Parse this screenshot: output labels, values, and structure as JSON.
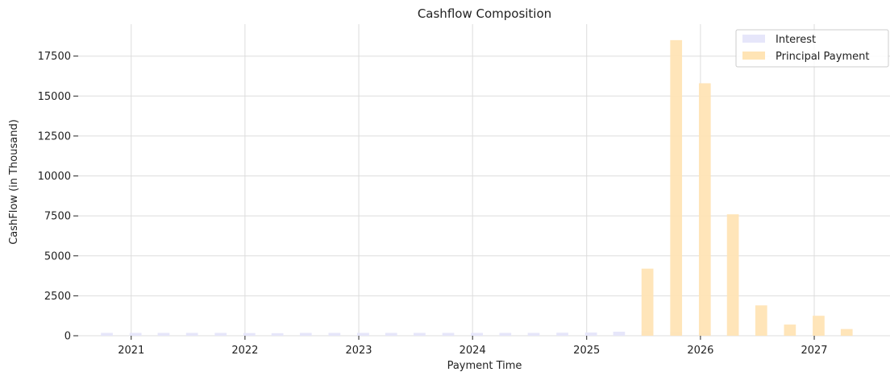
{
  "chart_data": {
    "type": "bar",
    "title": "Cashflow Composition",
    "xlabel": "Payment Time",
    "ylabel": "CashFlow (in Thousand)",
    "xlim": [
      "2020-07-15",
      "2027-09-01"
    ],
    "ylim": [
      0,
      19500
    ],
    "x_ticks": [
      {
        "date": "2021-01-01",
        "label": "2021"
      },
      {
        "date": "2022-01-01",
        "label": "2022"
      },
      {
        "date": "2023-01-01",
        "label": "2023"
      },
      {
        "date": "2024-01-01",
        "label": "2024"
      },
      {
        "date": "2025-01-01",
        "label": "2025"
      },
      {
        "date": "2026-01-01",
        "label": "2026"
      },
      {
        "date": "2027-01-01",
        "label": "2027"
      }
    ],
    "y_ticks": [
      0,
      2500,
      5000,
      7500,
      10000,
      12500,
      15000,
      17500
    ],
    "grid": true,
    "legend_position": "top-right",
    "series": [
      {
        "name": "Interest",
        "color": "#e6e6fa",
        "points": [
          {
            "x": "2020-10-15",
            "y": 180
          },
          {
            "x": "2021-01-15",
            "y": 180
          },
          {
            "x": "2021-04-15",
            "y": 180
          },
          {
            "x": "2021-07-15",
            "y": 180
          },
          {
            "x": "2021-10-15",
            "y": 180
          },
          {
            "x": "2022-01-15",
            "y": 170
          },
          {
            "x": "2022-04-15",
            "y": 160
          },
          {
            "x": "2022-07-15",
            "y": 180
          },
          {
            "x": "2022-10-15",
            "y": 180
          },
          {
            "x": "2023-01-15",
            "y": 180
          },
          {
            "x": "2023-04-15",
            "y": 180
          },
          {
            "x": "2023-07-15",
            "y": 180
          },
          {
            "x": "2023-10-15",
            "y": 180
          },
          {
            "x": "2024-01-15",
            "y": 180
          },
          {
            "x": "2024-04-15",
            "y": 180
          },
          {
            "x": "2024-07-15",
            "y": 180
          },
          {
            "x": "2024-10-15",
            "y": 190
          },
          {
            "x": "2025-01-15",
            "y": 200
          },
          {
            "x": "2025-04-15",
            "y": 250
          },
          {
            "x": "2025-07-15",
            "y": 280
          },
          {
            "x": "2025-10-15",
            "y": 240
          },
          {
            "x": "2026-01-15",
            "y": 150
          }
        ]
      },
      {
        "name": "Principal Payment",
        "color": "#ffe4b5",
        "points": [
          {
            "x": "2025-07-15",
            "y": 4200
          },
          {
            "x": "2025-10-15",
            "y": 18500
          },
          {
            "x": "2026-01-15",
            "y": 15800
          },
          {
            "x": "2026-04-15",
            "y": 7600
          },
          {
            "x": "2026-07-15",
            "y": 1900
          },
          {
            "x": "2026-10-15",
            "y": 700
          },
          {
            "x": "2027-01-15",
            "y": 1250
          },
          {
            "x": "2027-04-15",
            "y": 420
          }
        ]
      }
    ]
  }
}
